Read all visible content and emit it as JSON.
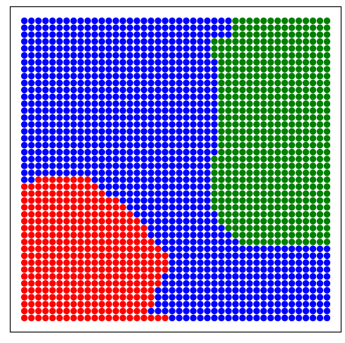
{
  "chart_data": {
    "type": "scatter",
    "title": "",
    "xlabel": "",
    "ylabel": "",
    "grid": false,
    "legend": false,
    "axes_ticks": false,
    "x_grid": {
      "start": 0,
      "step": 1,
      "count": 44
    },
    "y_grid": {
      "start": 0,
      "step": 1,
      "count": 44
    },
    "xlim": [
      -0.5,
      43.5
    ],
    "ylim": [
      -0.5,
      43.5
    ],
    "class_colors": {
      "blue": "#0000ff",
      "red": "#ff0000",
      "green": "#008000"
    },
    "regions": {
      "green": {
        "rows_top_to_bottom": [
          [
            30,
            43
          ],
          [
            30,
            43
          ],
          [
            30,
            43
          ],
          [
            27,
            43
          ],
          [
            27,
            43
          ],
          [
            27,
            43
          ],
          [
            28,
            43
          ],
          [
            28,
            43
          ],
          [
            28,
            43
          ],
          [
            28,
            43
          ],
          [
            28,
            43
          ],
          [
            28,
            43
          ],
          [
            28,
            43
          ],
          [
            28,
            43
          ],
          [
            28,
            43
          ],
          [
            28,
            43
          ],
          [
            28,
            43
          ],
          [
            28,
            43
          ],
          [
            28,
            43
          ],
          [
            28,
            43
          ],
          [
            27,
            43
          ],
          [
            27,
            43
          ],
          [
            27,
            43
          ],
          [
            27,
            43
          ],
          [
            27,
            43
          ],
          [
            27,
            43
          ],
          [
            27,
            43
          ],
          [
            27,
            43
          ],
          [
            28,
            43
          ],
          [
            28,
            43
          ],
          [
            29,
            43
          ],
          [
            30,
            43
          ],
          [
            31,
            43
          ]
        ],
        "note_rows_start": 0
      },
      "red": {
        "rows_top_to_bottom": [
          [
            2,
            9
          ],
          [
            0,
            10
          ],
          [
            0,
            11
          ],
          [
            0,
            13
          ],
          [
            0,
            14
          ],
          [
            0,
            15
          ],
          [
            0,
            16
          ],
          [
            0,
            17
          ],
          [
            0,
            17
          ],
          [
            0,
            18
          ],
          [
            0,
            19
          ],
          [
            0,
            20
          ],
          [
            0,
            20
          ],
          [
            0,
            20
          ],
          [
            0,
            19
          ],
          [
            0,
            19
          ],
          [
            0,
            18
          ],
          [
            0,
            18
          ],
          [
            0,
            18
          ],
          [
            0,
            17
          ],
          [
            0,
            20
          ]
        ],
        "note_rows_start": 23
      }
    },
    "default_class": "blue",
    "series": []
  }
}
